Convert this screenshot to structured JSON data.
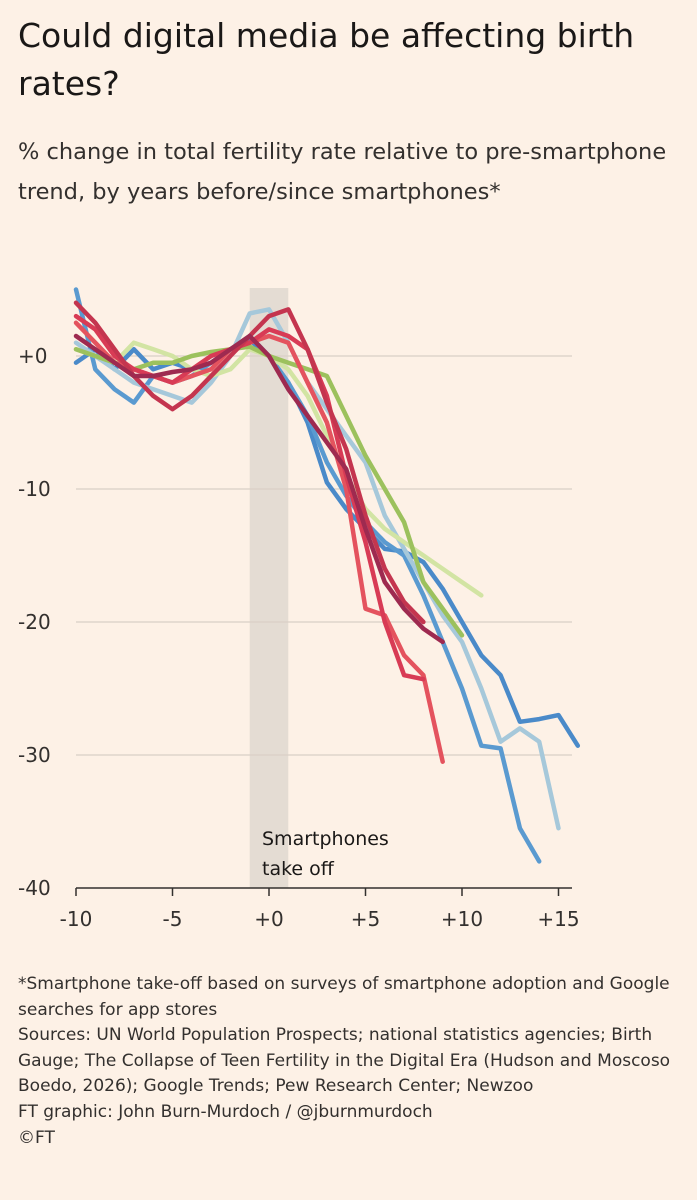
{
  "header": {
    "title": "Could digital media be affecting birth rates?",
    "subtitle": "% change in total fertility rate relative to pre-smartphone trend, by years before/since smartphones*"
  },
  "footer": {
    "note": "*Smartphone take-off based on surveys of smartphone adoption and Google searches for app stores",
    "sources": "Sources: UN World Population Prospects; national statistics agencies; Birth Gauge; The Collapse of Teen Fertility in the Digital Era (Hudson and Moscoso Boedo, 2026); Google Trends; Pew Research Center; Newzoo",
    "credit": "FT graphic: John Burn-Murdoch / @jburnmurdoch",
    "copyright": "©FT"
  },
  "colors": {
    "background": "#fdf1e6",
    "gridline": "#d9d0c6",
    "band": "#e4dcd3"
  },
  "chart_data": {
    "type": "line",
    "title": "Could digital media be affecting birth rates?",
    "subtitle": "% change in total fertility rate relative to pre-smartphone trend, by years before/since smartphones*",
    "xlim": [
      -10,
      16
    ],
    "ylim": [
      -40,
      5
    ],
    "x_ticks": [
      -10,
      -5,
      0,
      5,
      10,
      15
    ],
    "x_tick_labels": [
      "-10",
      "-5",
      "+0",
      "+5",
      "+10",
      "+15"
    ],
    "y_ticks": [
      0,
      -10,
      -20,
      -30,
      -40
    ],
    "y_tick_labels": [
      "+0",
      "-10",
      "-20",
      "-30",
      "-40"
    ],
    "grid": true,
    "band": {
      "x_start": -1,
      "x_end": 1,
      "label_lines": [
        "Smartphones",
        "take off"
      ]
    },
    "series": [
      {
        "color": "#4a8ac9",
        "x": [
          -10,
          -9,
          -8,
          -7,
          -6,
          -5,
          -4,
          -3,
          -2,
          -1,
          0,
          1,
          2,
          3,
          4,
          5,
          6,
          7,
          8,
          9,
          10,
          11,
          12,
          13,
          14,
          15,
          16
        ],
        "y": [
          -0.5,
          0.5,
          -1,
          0.5,
          -1,
          -0.5,
          -1,
          -0.5,
          0.5,
          1.2,
          0,
          -2,
          -5,
          -9.5,
          -11.5,
          -13,
          -14.5,
          -14.7,
          -15.5,
          -17.5,
          -20,
          -22.5,
          -24,
          -27.5,
          -27.3,
          -27,
          -29.3
        ]
      },
      {
        "color": "#5a9ad0",
        "x": [
          -10,
          -9,
          -8,
          -7,
          -6,
          -5,
          -4,
          -3,
          -2,
          -1,
          0,
          1,
          2,
          3,
          4,
          5,
          6,
          7,
          8,
          9,
          10,
          11,
          12,
          13,
          14
        ],
        "y": [
          5,
          -1,
          -2.5,
          -3.5,
          -1.5,
          -2,
          -1.5,
          -0.5,
          0.5,
          1.5,
          0,
          -2,
          -4.5,
          -8,
          -10.5,
          -12.5,
          -14,
          -15,
          -18,
          -21.5,
          -25,
          -29.3,
          -29.5,
          -35.5,
          -38
        ]
      },
      {
        "color": "#a6c8da",
        "x": [
          -10,
          -9,
          -8,
          -7,
          -6,
          -5,
          -4,
          -3,
          -2,
          -1,
          0,
          1,
          2,
          3,
          4,
          5,
          6,
          7,
          8,
          9,
          10,
          11,
          12,
          13,
          14,
          15
        ],
        "y": [
          1,
          0,
          -1,
          -2,
          -2.5,
          -3,
          -3.5,
          -2,
          0,
          3.2,
          3.5,
          1,
          -2,
          -4,
          -6,
          -8,
          -12,
          -14.5,
          -17,
          -19.5,
          -21.5,
          -25,
          -29,
          -28,
          -29,
          -35.5
        ]
      },
      {
        "color": "#d2e4a3",
        "x": [
          -10,
          -9,
          -8,
          -7,
          -6,
          -5,
          -4,
          -3,
          -2,
          -1,
          0,
          1,
          2,
          3,
          4,
          5,
          6,
          7,
          8,
          9,
          10,
          11
        ],
        "y": [
          0.5,
          0,
          -0.5,
          1,
          0.5,
          0,
          -1,
          -1.5,
          -1,
          0.5,
          0,
          -1,
          -3,
          -6,
          -9,
          -11.5,
          -13,
          -14,
          -15,
          -16,
          -17,
          -18
        ]
      },
      {
        "color": "#9cc15d",
        "x": [
          -10,
          -9,
          -8,
          -7,
          -6,
          -5,
          -4,
          -3,
          -2,
          -1,
          0,
          1,
          2,
          3,
          4,
          5,
          6,
          7,
          8,
          9,
          10
        ],
        "y": [
          0.5,
          0,
          -0.5,
          -1,
          -0.5,
          -0.5,
          0,
          0.3,
          0.5,
          0.7,
          0,
          -0.5,
          -1,
          -1.5,
          -4.5,
          -7.5,
          -10,
          -12.5,
          -17,
          -19,
          -21
        ]
      },
      {
        "color": "#e4535e",
        "x": [
          -10,
          -9,
          -8,
          -7,
          -6,
          -5,
          -4,
          -3,
          -2,
          -1,
          0,
          1,
          2,
          3,
          4,
          5,
          6,
          7,
          8,
          9
        ],
        "y": [
          2.5,
          1,
          -0.5,
          -1,
          -1.5,
          -2,
          -1.5,
          -1,
          0.5,
          1,
          1.5,
          1,
          -2,
          -5,
          -10,
          -19,
          -19.5,
          -22.5,
          -24,
          -30.5
        ]
      },
      {
        "color": "#d83b55",
        "x": [
          -10,
          -9,
          -8,
          -7,
          -6,
          -5,
          -4,
          -3,
          -2,
          -1,
          0,
          1,
          2,
          3,
          4,
          5,
          6,
          7,
          8
        ],
        "y": [
          3,
          2,
          0,
          -1,
          -1.5,
          -2,
          -1,
          0,
          0.5,
          1,
          2,
          1.5,
          0.5,
          -3,
          -9,
          -14,
          -20,
          -24,
          -24.3
        ]
      },
      {
        "color": "#c4354f",
        "x": [
          -10,
          -9,
          -8,
          -7,
          -6,
          -5,
          -4,
          -3,
          -2,
          -1,
          0,
          1,
          2,
          3,
          4,
          5,
          6,
          7,
          8
        ],
        "y": [
          4,
          2.5,
          0.5,
          -1.5,
          -3,
          -4,
          -3,
          -1.5,
          0,
          1.5,
          3,
          3.5,
          0.5,
          -3.5,
          -7,
          -12,
          -16,
          -18.5,
          -20
        ]
      },
      {
        "color": "#9e2a50",
        "x": [
          -10,
          -9,
          -8,
          -7,
          -6,
          -5,
          -4,
          -3,
          -2,
          -1,
          0,
          1,
          2,
          3,
          4,
          5,
          6,
          7,
          8,
          9
        ],
        "y": [
          1.5,
          0.5,
          -0.5,
          -1.5,
          -1.5,
          -1.2,
          -1,
          -0.5,
          0.5,
          1.5,
          0,
          -2.5,
          -4.5,
          -6.5,
          -8.5,
          -13,
          -17,
          -19,
          -20.5,
          -21.5
        ]
      }
    ]
  }
}
